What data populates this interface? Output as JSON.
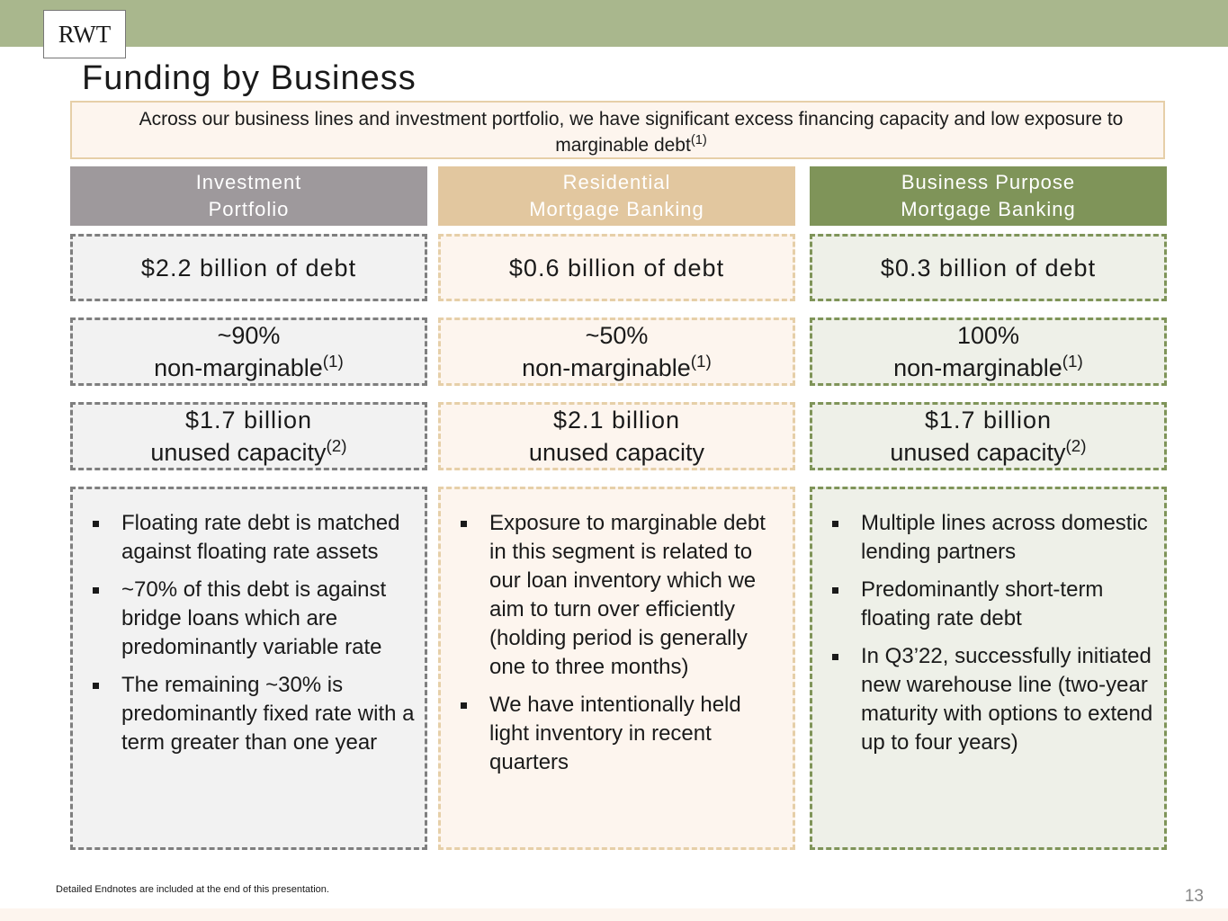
{
  "logo": "RWT",
  "title": "Funding by Business",
  "banner": {
    "text": "Across our business lines and investment portfolio, we have significant excess financing capacity and low exposure to marginable debt",
    "sup": "(1)"
  },
  "columns": [
    {
      "header": [
        "Investment",
        "Portfolio"
      ],
      "debt": "$2.2 billion of debt",
      "pct": "~90%",
      "pct_label": "non-marginable",
      "pct_sup": "(1)",
      "cap": "$1.7 billion",
      "cap_label": "unused capacity",
      "cap_sup": "(2)",
      "bullets": [
        "Floating rate debt is matched against floating rate assets",
        "~70% of this debt is against bridge loans which are predominantly variable rate",
        "The remaining ~30% is predominantly fixed rate with a term greater than one year"
      ]
    },
    {
      "header": [
        "Residential",
        "Mortgage Banking"
      ],
      "debt": "$0.6 billion of debt",
      "pct": "~50%",
      "pct_label": "non-marginable",
      "pct_sup": "(1)",
      "cap": "$2.1 billion",
      "cap_label": "unused capacity",
      "cap_sup": "",
      "bullets": [
        "Exposure to marginable debt in this segment is related to our loan inventory which we aim to turn over efficiently (holding period is generally one to three months)",
        "We have intentionally held light inventory in recent quarters"
      ]
    },
    {
      "header": [
        "Business Purpose",
        "Mortgage Banking"
      ],
      "debt": "$0.3 billion of debt",
      "pct": "100%",
      "pct_label": "non-marginable",
      "pct_sup": "(1)",
      "cap": "$1.7 billion",
      "cap_label": "unused capacity",
      "cap_sup": "(2)",
      "bullets": [
        "Multiple lines across domestic lending partners",
        "Predominantly short-term floating rate debt",
        "In Q3’22, successfully initiated new warehouse line (two-year maturity with options to extend up to four years)"
      ]
    }
  ],
  "colors": {
    "band": "#a9b78d",
    "investment": "#9e999c",
    "residential": "#e2c79f",
    "business": "#7f9459"
  },
  "footnote": "Detailed Endnotes are included at the end of this presentation.",
  "page_number": "13"
}
